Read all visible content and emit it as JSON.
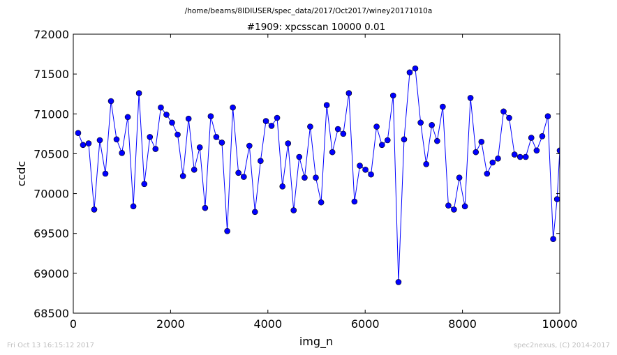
{
  "chart_data": {
    "type": "line",
    "suptitle": "/home/beams/8IDIUSER/spec_data/2017/Oct2017/winey20171010a",
    "title": "#1909: xpcsscan 10000 0.01",
    "xlabel": "img_n",
    "ylabel": "ccdc",
    "xlim": [
      0,
      10000
    ],
    "ylim": [
      68500,
      72000
    ],
    "xticks": [
      0,
      2000,
      4000,
      6000,
      8000,
      10000
    ],
    "xtick_labels": [
      "0",
      "2000",
      "4000",
      "6000",
      "8000",
      "10000"
    ],
    "yticks": [
      68500,
      69000,
      69500,
      70000,
      70500,
      71000,
      71500,
      72000
    ],
    "ytick_labels": [
      "68500",
      "69000",
      "69500",
      "70000",
      "70500",
      "71000",
      "71500",
      "72000"
    ],
    "grid": false,
    "marker": "circle",
    "series": [
      {
        "color": "#0000ff",
        "x": [
          100,
          200,
          315,
          430,
          545,
          660,
          775,
          890,
          1000,
          1120,
          1235,
          1350,
          1460,
          1575,
          1690,
          1800,
          1915,
          2030,
          2145,
          2255,
          2370,
          2485,
          2600,
          2710,
          2825,
          2940,
          3055,
          3165,
          3280,
          3395,
          3505,
          3620,
          3735,
          3850,
          3960,
          4075,
          4190,
          4300,
          4415,
          4530,
          4645,
          4755,
          4870,
          4985,
          5095,
          5210,
          5325,
          5440,
          5550,
          5665,
          5780,
          5890,
          6005,
          6120,
          6235,
          6345,
          6460,
          6575,
          6685,
          6800,
          6915,
          7030,
          7140,
          7255,
          7370,
          7480,
          7595,
          7710,
          7825,
          7935,
          8050,
          8165,
          8275,
          8390,
          8505,
          8620,
          8730,
          8845,
          8960,
          9070,
          9185,
          9300,
          9415,
          9525,
          9640,
          9755,
          9865,
          9945,
          10000
        ],
        "values": [
          70760,
          70610,
          70630,
          69800,
          70670,
          70250,
          71160,
          70680,
          70510,
          70960,
          69840,
          71260,
          70120,
          70710,
          70560,
          71080,
          70990,
          70890,
          70740,
          70220,
          70940,
          70300,
          70580,
          69820,
          70970,
          70710,
          70640,
          69530,
          71080,
          70260,
          70210,
          70600,
          69770,
          70410,
          70910,
          70850,
          70950,
          70090,
          70630,
          69790,
          70460,
          70200,
          70840,
          70200,
          69890,
          71110,
          70520,
          70810,
          70750,
          71260,
          69900,
          70350,
          70300,
          70240,
          70840,
          70610,
          70670,
          71230,
          68890,
          70680,
          71520,
          71570,
          70890,
          70370,
          70860,
          70660,
          71090,
          69850,
          69800,
          70200,
          69840,
          71200,
          70520,
          70650,
          70250,
          70390,
          70440,
          71030,
          70950,
          70490,
          70460,
          70460,
          70700,
          70540,
          70720,
          70970,
          69430,
          69930,
          70540
        ]
      }
    ]
  },
  "footer": {
    "left": "Fri Oct 13 16:15:12 2017",
    "right": "spec2nexus, (C) 2014-2017"
  }
}
